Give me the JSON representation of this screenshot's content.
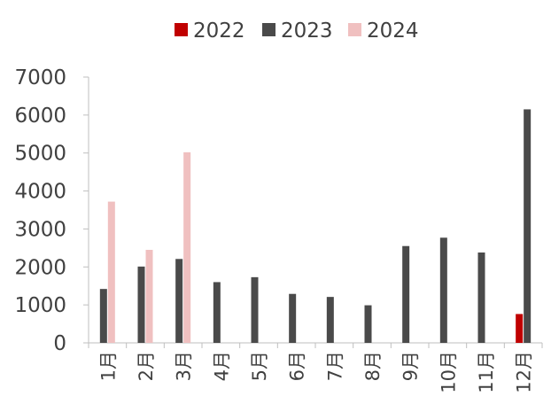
{
  "chart_data": {
    "type": "bar",
    "categories": [
      "1月",
      "2月",
      "3月",
      "4月",
      "5月",
      "6月",
      "7月",
      "8月",
      "9月",
      "10月",
      "11月",
      "12月"
    ],
    "series": [
      {
        "name": "2022",
        "color": "#c00000",
        "values": [
          null,
          null,
          null,
          null,
          null,
          null,
          null,
          null,
          null,
          null,
          null,
          760
        ]
      },
      {
        "name": "2023",
        "color": "#4a4a4a",
        "values": [
          1420,
          2010,
          2210,
          1600,
          1730,
          1290,
          1210,
          990,
          2550,
          2770,
          2380,
          6150
        ]
      },
      {
        "name": "2024",
        "color": "#f0c0c0",
        "values": [
          3720,
          2450,
          5020,
          null,
          null,
          null,
          null,
          null,
          null,
          null,
          null,
          null
        ]
      }
    ],
    "yticks": [
      "0",
      "1000",
      "2000",
      "3000",
      "4000",
      "5000",
      "6000",
      "7000"
    ],
    "ylim": [
      0,
      7000
    ],
    "legend_position": "top",
    "grid": false
  }
}
